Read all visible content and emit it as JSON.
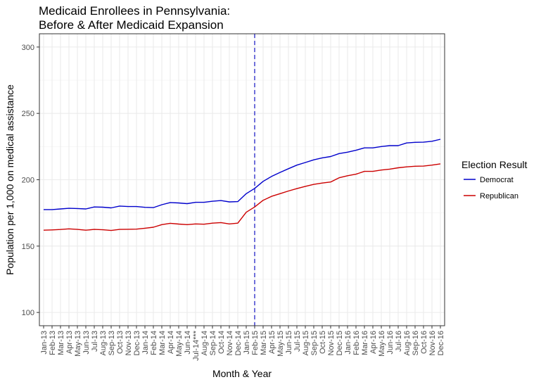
{
  "chart_data": {
    "type": "line",
    "title_lines": [
      "Medicaid Enrollees in Pennsylvania:",
      "Before & After Medicaid Expansion"
    ],
    "xlabel": "Month & Year",
    "ylabel": "Population per 1,000 on medical assistance",
    "ylim": [
      90,
      310
    ],
    "yticks": [
      100,
      150,
      200,
      250,
      300
    ],
    "grid": true,
    "legend_title": "Election Result",
    "legend_position": "right",
    "vline": {
      "at": "Feb-15",
      "style": "dashed",
      "color": "#3333cc"
    },
    "categories": [
      "Jan-13",
      "Feb-13",
      "Mar-13",
      "Apr-13",
      "May-13",
      "Jun-13",
      "Jul-13",
      "Aug-13",
      "Sep-13",
      "Oct-13",
      "Nov-13",
      "Dec-13",
      "Jan-14",
      "Feb-14",
      "Mar-14",
      "Apr-14",
      "May-14",
      "Jun-14",
      "Jul-14***",
      "Aug-14",
      "Sep-14",
      "Oct-14",
      "Nov-14",
      "Dec-14",
      "Jan-15",
      "Feb-15",
      "Mar-15",
      "Apr-15",
      "May-15",
      "Jun-15",
      "Jul-15",
      "Aug-15",
      "Sep-15",
      "Oct-15",
      "Nov-15",
      "Dec-15",
      "Jan-16",
      "Feb-16",
      "Mar-16",
      "Apr-16",
      "May-16",
      "Jun-16",
      "Jul-16",
      "Aug-16",
      "Sep-16",
      "Oct-16",
      "Nov-16",
      "Dec-16"
    ],
    "series": [
      {
        "name": "Democrat",
        "color": "#0000cc",
        "values": [
          177.5,
          177.5,
          178,
          178.5,
          178.3,
          178,
          179.5,
          179.3,
          178.8,
          180.2,
          179.8,
          179.8,
          179.2,
          179,
          181.2,
          182.8,
          182.5,
          182,
          183,
          183,
          183.8,
          184.3,
          183.3,
          183.5,
          189.5,
          193.5,
          198.8,
          202.5,
          205.5,
          208.3,
          211,
          213,
          215,
          216.5,
          217.5,
          219.7,
          220.8,
          222.2,
          224,
          224,
          225,
          225.7,
          225.7,
          227.7,
          228.2,
          228.3,
          229,
          230.5
        ]
      },
      {
        "name": "Republican",
        "color": "#cc0000",
        "values": [
          162,
          162.2,
          162.5,
          163,
          162.6,
          162,
          162.6,
          162.3,
          161.8,
          162.6,
          162.7,
          162.8,
          163.5,
          164.2,
          166.2,
          167.2,
          166.6,
          166.2,
          166.7,
          166.5,
          167.3,
          167.7,
          166.7,
          167.3,
          175.5,
          179.5,
          184.5,
          187.5,
          189.5,
          191.5,
          193.3,
          195,
          196.5,
          197.5,
          198.3,
          201.5,
          203,
          204.2,
          206.3,
          206.3,
          207.3,
          208,
          209,
          209.7,
          210.2,
          210.3,
          211,
          212
        ]
      }
    ]
  }
}
